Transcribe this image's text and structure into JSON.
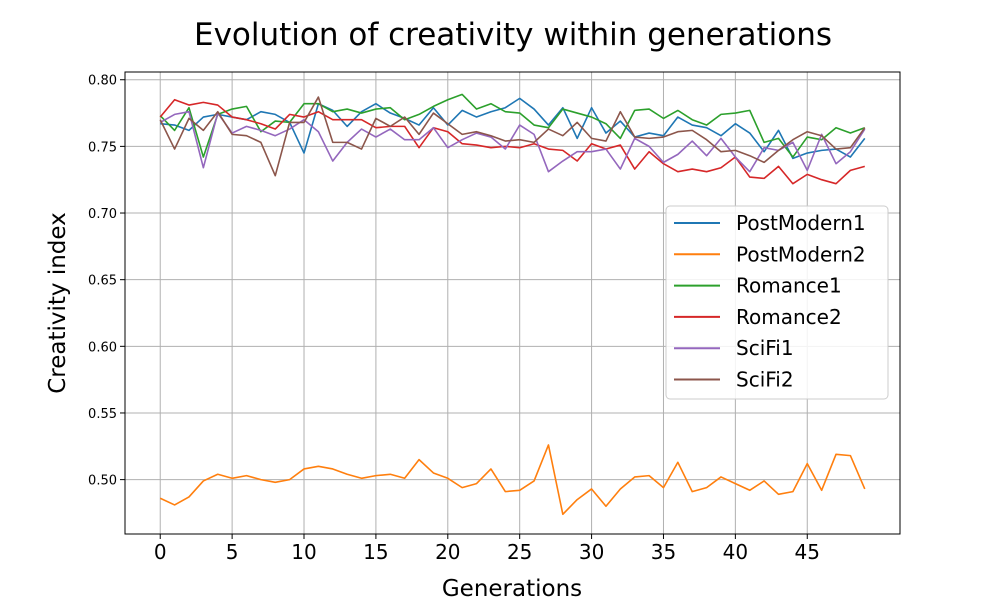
{
  "chart_data": {
    "type": "line",
    "title": "Evolution of creativity within generations",
    "xlabel": "Generations",
    "ylabel": "Creativity index",
    "xlim": [
      -2.45,
      51.45
    ],
    "ylim": [
      0.4592,
      0.8058
    ],
    "xticks": [
      0,
      5,
      10,
      15,
      20,
      25,
      30,
      35,
      40,
      45
    ],
    "yticks": [
      0.5,
      0.55,
      0.6,
      0.65,
      0.7,
      0.75,
      0.8
    ],
    "ytick_labels": [
      "0.50",
      "0.55",
      "0.60",
      "0.65",
      "0.70",
      "0.75",
      "0.80"
    ],
    "grid": true,
    "legend_position": "center-right",
    "x": [
      0,
      1,
      2,
      3,
      4,
      5,
      6,
      7,
      8,
      9,
      10,
      11,
      12,
      13,
      14,
      15,
      16,
      17,
      18,
      19,
      20,
      21,
      22,
      23,
      24,
      25,
      26,
      27,
      28,
      29,
      30,
      31,
      32,
      33,
      34,
      35,
      36,
      37,
      38,
      39,
      40,
      41,
      42,
      43,
      44,
      45,
      46,
      47,
      48,
      49
    ],
    "series": [
      {
        "name": "PostModern1",
        "color": "#1f77b4",
        "values": [
          0.767,
          0.766,
          0.762,
          0.772,
          0.774,
          0.772,
          0.77,
          0.776,
          0.774,
          0.768,
          0.745,
          0.782,
          0.777,
          0.765,
          0.776,
          0.782,
          0.775,
          0.771,
          0.766,
          0.779,
          0.766,
          0.777,
          0.772,
          0.776,
          0.779,
          0.786,
          0.778,
          0.766,
          0.779,
          0.756,
          0.779,
          0.76,
          0.769,
          0.757,
          0.76,
          0.758,
          0.772,
          0.766,
          0.764,
          0.758,
          0.767,
          0.76,
          0.746,
          0.762,
          0.741,
          0.745,
          0.747,
          0.748,
          0.742,
          0.756
        ]
      },
      {
        "name": "PostModern2",
        "color": "#ff7f0e",
        "values": [
          0.486,
          0.481,
          0.487,
          0.499,
          0.504,
          0.501,
          0.503,
          0.5,
          0.498,
          0.5,
          0.508,
          0.51,
          0.508,
          0.504,
          0.501,
          0.503,
          0.504,
          0.501,
          0.515,
          0.505,
          0.501,
          0.494,
          0.497,
          0.508,
          0.491,
          0.492,
          0.499,
          0.526,
          0.474,
          0.485,
          0.493,
          0.48,
          0.493,
          0.502,
          0.503,
          0.494,
          0.513,
          0.491,
          0.494,
          0.502,
          0.497,
          0.492,
          0.499,
          0.489,
          0.491,
          0.512,
          0.492,
          0.519,
          0.518,
          0.493
        ]
      },
      {
        "name": "Romance1",
        "color": "#2ca02c",
        "values": [
          0.773,
          0.762,
          0.779,
          0.742,
          0.774,
          0.778,
          0.78,
          0.761,
          0.769,
          0.768,
          0.782,
          0.782,
          0.776,
          0.778,
          0.775,
          0.778,
          0.779,
          0.77,
          0.774,
          0.78,
          0.785,
          0.789,
          0.778,
          0.782,
          0.776,
          0.775,
          0.766,
          0.764,
          0.778,
          0.775,
          0.772,
          0.767,
          0.756,
          0.777,
          0.778,
          0.771,
          0.777,
          0.77,
          0.766,
          0.774,
          0.775,
          0.777,
          0.753,
          0.756,
          0.742,
          0.757,
          0.755,
          0.764,
          0.76,
          0.764
        ]
      },
      {
        "name": "Romance2",
        "color": "#d62728",
        "values": [
          0.772,
          0.785,
          0.781,
          0.783,
          0.781,
          0.772,
          0.77,
          0.767,
          0.763,
          0.774,
          0.772,
          0.776,
          0.77,
          0.77,
          0.77,
          0.764,
          0.765,
          0.765,
          0.749,
          0.764,
          0.761,
          0.752,
          0.751,
          0.749,
          0.75,
          0.749,
          0.752,
          0.748,
          0.747,
          0.739,
          0.752,
          0.748,
          0.751,
          0.733,
          0.746,
          0.737,
          0.731,
          0.733,
          0.731,
          0.734,
          0.742,
          0.727,
          0.726,
          0.735,
          0.722,
          0.729,
          0.725,
          0.722,
          0.732,
          0.735
        ]
      },
      {
        "name": "SciFi1",
        "color": "#9467bd",
        "values": [
          0.768,
          0.774,
          0.776,
          0.734,
          0.775,
          0.76,
          0.765,
          0.762,
          0.758,
          0.763,
          0.77,
          0.761,
          0.739,
          0.753,
          0.763,
          0.757,
          0.763,
          0.755,
          0.755,
          0.764,
          0.749,
          0.755,
          0.76,
          0.757,
          0.748,
          0.766,
          0.759,
          0.731,
          0.739,
          0.746,
          0.746,
          0.748,
          0.733,
          0.756,
          0.75,
          0.738,
          0.744,
          0.754,
          0.743,
          0.756,
          0.742,
          0.731,
          0.749,
          0.747,
          0.753,
          0.732,
          0.759,
          0.737,
          0.746,
          0.763
        ]
      },
      {
        "name": "SciFi2",
        "color": "#8c564b",
        "values": [
          0.77,
          0.748,
          0.771,
          0.762,
          0.776,
          0.759,
          0.758,
          0.753,
          0.728,
          0.768,
          0.768,
          0.787,
          0.753,
          0.753,
          0.748,
          0.771,
          0.765,
          0.772,
          0.759,
          0.775,
          0.767,
          0.759,
          0.761,
          0.758,
          0.754,
          0.755,
          0.753,
          0.763,
          0.758,
          0.768,
          0.756,
          0.754,
          0.776,
          0.757,
          0.756,
          0.757,
          0.761,
          0.762,
          0.755,
          0.746,
          0.747,
          0.743,
          0.738,
          0.747,
          0.755,
          0.761,
          0.758,
          0.748,
          0.749,
          0.764
        ]
      }
    ]
  }
}
